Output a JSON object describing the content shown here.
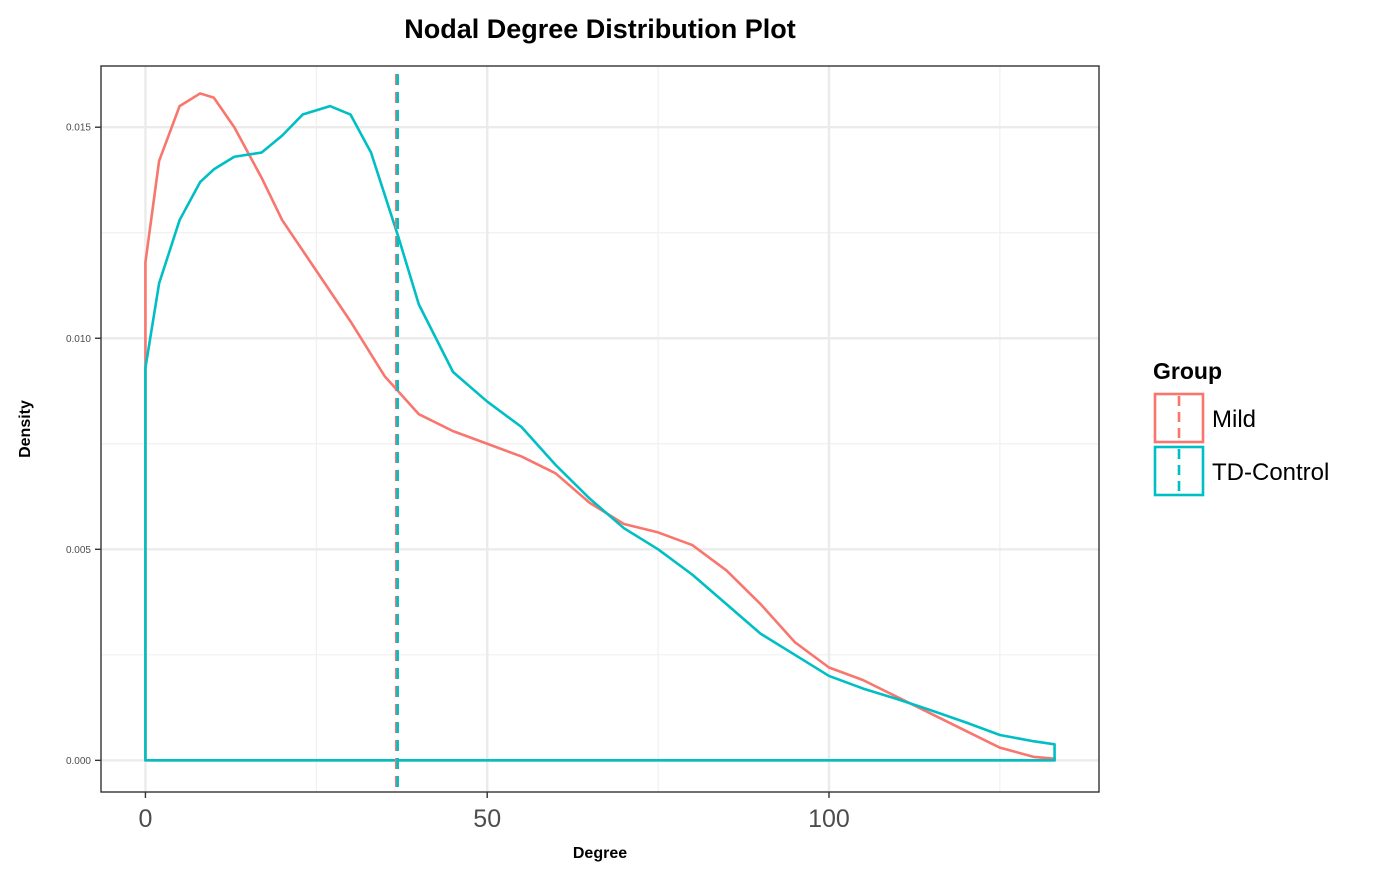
{
  "chart_data": {
    "type": "line",
    "title": "Nodal Degree Distribution Plot",
    "xlabel": "Degree",
    "ylabel": "Density",
    "xlim": [
      -6.5,
      139.5
    ],
    "ylim": [
      -0.00075,
      0.01645
    ],
    "x_ticks": [
      0,
      50,
      100
    ],
    "x_tick_labels": [
      "0",
      "50",
      "100"
    ],
    "x_minor_ticks": [
      25,
      75,
      125
    ],
    "y_ticks": [
      0,
      0.005,
      0.01,
      0.015
    ],
    "y_tick_labels": [
      "0.000",
      "0.005",
      "0.010",
      "0.015"
    ],
    "y_minor_ticks": [
      0.0025,
      0.0075,
      0.0125
    ],
    "grid": true,
    "legend": {
      "title": "Group",
      "position": "right",
      "entries": [
        "Mild",
        "TD-Control"
      ]
    },
    "series": [
      {
        "name": "Mild",
        "color": "#F8766D",
        "x": [
          0,
          2,
          5,
          8,
          10,
          13,
          17,
          20,
          25,
          30,
          35,
          40,
          45,
          50,
          55,
          60,
          65,
          70,
          75,
          80,
          85,
          90,
          95,
          100,
          105,
          110,
          115,
          120,
          125,
          130,
          133
        ],
        "y": [
          0.0118,
          0.0142,
          0.0155,
          0.0158,
          0.0157,
          0.015,
          0.0138,
          0.0128,
          0.0116,
          0.0104,
          0.0091,
          0.0082,
          0.0078,
          0.0075,
          0.0072,
          0.0068,
          0.0061,
          0.0056,
          0.0054,
          0.0051,
          0.0045,
          0.0037,
          0.0028,
          0.0022,
          0.0019,
          0.0015,
          0.0011,
          0.0007,
          0.0003,
          8e-05,
          4e-05
        ],
        "mean_line_x": 36.7
      },
      {
        "name": "TD-Control",
        "color": "#00BFC4",
        "x": [
          0,
          2,
          5,
          8,
          10,
          13,
          17,
          20,
          23,
          27,
          30,
          33,
          37,
          40,
          45,
          50,
          55,
          60,
          65,
          70,
          75,
          80,
          85,
          90,
          95,
          100,
          105,
          110,
          115,
          120,
          125,
          130,
          133
        ],
        "y": [
          0.0093,
          0.0113,
          0.0128,
          0.0137,
          0.014,
          0.0143,
          0.0144,
          0.0148,
          0.0153,
          0.0155,
          0.0153,
          0.0144,
          0.0124,
          0.0108,
          0.0092,
          0.0085,
          0.0079,
          0.007,
          0.0062,
          0.0055,
          0.005,
          0.0044,
          0.0037,
          0.003,
          0.0025,
          0.002,
          0.0017,
          0.00145,
          0.00118,
          0.0009,
          0.0006,
          0.00045,
          0.00038
        ],
        "mean_line_x": 36.9
      }
    ]
  }
}
